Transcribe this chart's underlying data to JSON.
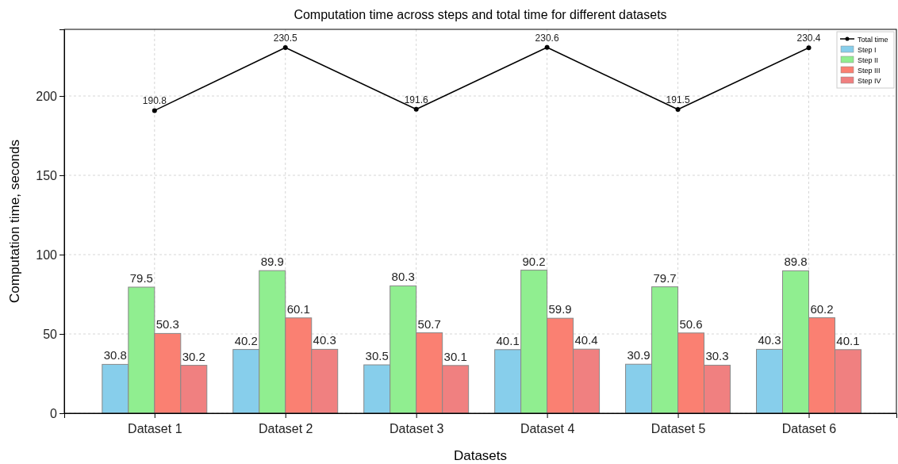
{
  "chart_data": {
    "type": "bar",
    "title": "Computation time across steps and total time for different datasets",
    "xlabel": "Datasets",
    "ylabel": "Computation time, seconds",
    "categories": [
      "Dataset 1",
      "Dataset 2",
      "Dataset 3",
      "Dataset 4",
      "Dataset 5",
      "Dataset 6"
    ],
    "series": [
      {
        "name": "Total time",
        "type": "line",
        "color": "#000000",
        "values": [
          190.8,
          230.5,
          191.6,
          230.6,
          191.5,
          230.4
        ]
      },
      {
        "name": "Step I",
        "color": "#87ceeb",
        "values": [
          30.8,
          40.2,
          30.5,
          40.1,
          30.9,
          40.3
        ]
      },
      {
        "name": "Step II",
        "color": "#90ee90",
        "values": [
          79.5,
          89.9,
          80.3,
          90.2,
          79.7,
          89.8
        ]
      },
      {
        "name": "Step III",
        "color": "#fa8072",
        "values": [
          50.3,
          60.1,
          50.7,
          59.9,
          50.6,
          60.2
        ]
      },
      {
        "name": "Step IV",
        "color": "#f08080",
        "values": [
          30.2,
          40.3,
          30.1,
          40.4,
          30.3,
          40.1
        ]
      }
    ],
    "ylim": [
      0,
      242
    ],
    "yticks": [
      0,
      50,
      100,
      150,
      200
    ],
    "grid": true,
    "legend": "top right",
    "marker": "circle",
    "line_style": "solid",
    "data_labels": true
  }
}
